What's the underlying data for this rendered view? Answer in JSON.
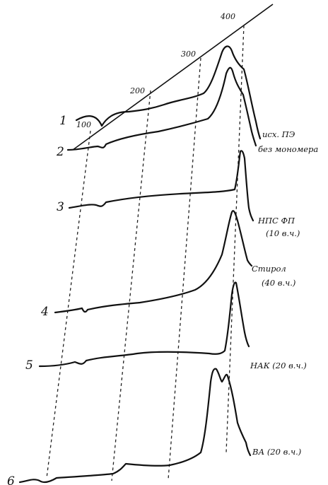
{
  "chart_data": {
    "type": "line",
    "temperature_scale": {
      "tick_labels": [
        "100",
        "200",
        "300",
        "400"
      ]
    },
    "series": [
      {
        "number": "1",
        "name": "исх. ПЭ"
      },
      {
        "number": "2",
        "name": "без мономера"
      },
      {
        "number": "3",
        "name": "НПС ФП",
        "name_line2": "(10 в.ч.)"
      },
      {
        "number": "4",
        "name": "Стирол",
        "name_line2": "(40 в.ч.)"
      },
      {
        "number": "5",
        "name": "НАК (20 в.ч.)"
      },
      {
        "number": "6",
        "name": "ВА (20 в.ч.)"
      }
    ]
  }
}
